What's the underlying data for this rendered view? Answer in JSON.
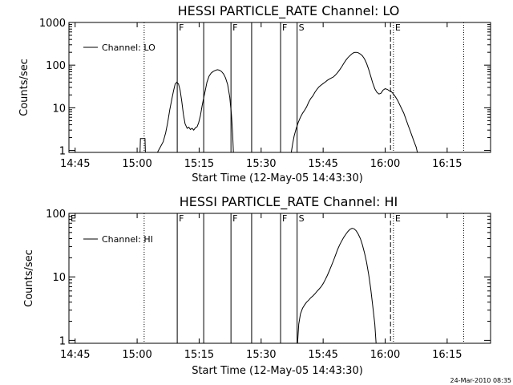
{
  "footer_timestamp": "24-Mar-2010 08:35",
  "chart_data": [
    {
      "type": "line",
      "title": "HESSI PARTICLE_RATE Channel: LO",
      "xlabel": "Start Time (12-May-05 14:43:30)",
      "ylabel": "Counts/sec",
      "y_scale": "log",
      "ylim": [
        0.9,
        1000
      ],
      "xlim_minutes": [
        0,
        102
      ],
      "x_ticks": [
        {
          "min": 1.5,
          "label": "14:45"
        },
        {
          "min": 16.5,
          "label": "15:00"
        },
        {
          "min": 31.5,
          "label": "15:15"
        },
        {
          "min": 46.5,
          "label": "15:30"
        },
        {
          "min": 61.5,
          "label": "15:45"
        },
        {
          "min": 76.5,
          "label": "16:00"
        },
        {
          "min": 91.5,
          "label": "16:15"
        }
      ],
      "y_ticks": [
        {
          "value": 1,
          "label": "1"
        },
        {
          "value": 10,
          "label": "10"
        },
        {
          "value": 100,
          "label": "100"
        },
        {
          "value": 1000,
          "label": "1000"
        }
      ],
      "legend": {
        "position": "top-left",
        "entries": [
          "Channel: LO"
        ]
      },
      "markers": [
        {
          "min": 18.2,
          "style": "dotted",
          "label": ""
        },
        {
          "min": 26.2,
          "style": "solid",
          "label": "F"
        },
        {
          "min": 32.6,
          "style": "solid",
          "label": ""
        },
        {
          "min": 39.2,
          "style": "solid",
          "label": "F"
        },
        {
          "min": 44.2,
          "style": "solid",
          "label": ""
        },
        {
          "min": 51.2,
          "style": "solid",
          "label": "F"
        },
        {
          "min": 55.2,
          "style": "solid",
          "label": "S"
        },
        {
          "min": 77.8,
          "style": "dashed",
          "label": ""
        },
        {
          "min": 78.5,
          "style": "dotted",
          "label": "E"
        },
        {
          "min": 95.5,
          "style": "dotted",
          "label": ""
        }
      ],
      "edge_labels": [],
      "series": [
        {
          "name": "Channel: LO",
          "segments": [
            [
              [
                17.2,
                0.9
              ],
              [
                17.3,
                1.9
              ],
              [
                18.4,
                1.9
              ],
              [
                18.5,
                0.9
              ]
            ],
            [
              [
                21.4,
                0.9
              ],
              [
                22.1,
                1.2
              ],
              [
                22.8,
                1.6
              ],
              [
                23.4,
                2.6
              ],
              [
                23.9,
                4.5
              ],
              [
                24.4,
                9
              ],
              [
                24.9,
                16
              ],
              [
                25.3,
                25
              ],
              [
                25.7,
                36
              ],
              [
                26.1,
                40
              ],
              [
                26.5,
                36
              ],
              [
                26.9,
                26
              ],
              [
                27.3,
                14
              ],
              [
                27.7,
                7
              ],
              [
                28.1,
                4.2
              ],
              [
                28.6,
                3.3
              ],
              [
                29.0,
                3.5
              ],
              [
                29.4,
                3.1
              ],
              [
                29.8,
                3.3
              ],
              [
                30.2,
                3.0
              ],
              [
                30.6,
                3.4
              ],
              [
                31.0,
                3.6
              ],
              [
                31.4,
                4.5
              ],
              [
                31.8,
                6.5
              ],
              [
                32.2,
                11
              ],
              [
                32.6,
                17
              ],
              [
                33.0,
                26
              ],
              [
                33.4,
                40
              ],
              [
                33.9,
                55
              ],
              [
                34.4,
                65
              ],
              [
                34.9,
                71
              ],
              [
                35.4,
                75
              ],
              [
                35.9,
                78
              ],
              [
                36.4,
                76
              ],
              [
                36.9,
                71
              ],
              [
                37.4,
                62
              ],
              [
                37.9,
                50
              ],
              [
                38.4,
                35
              ],
              [
                38.9,
                18
              ],
              [
                39.3,
                7
              ],
              [
                39.6,
                2.5
              ],
              [
                39.8,
                0.9
              ]
            ],
            [
              [
                53.8,
                0.9
              ],
              [
                54.1,
                1.4
              ],
              [
                54.5,
                2.2
              ],
              [
                55.0,
                3.3
              ],
              [
                55.5,
                4.6
              ],
              [
                56.0,
                6.0
              ],
              [
                56.5,
                7.4
              ],
              [
                57.0,
                8.7
              ],
              [
                57.5,
                10.5
              ],
              [
                58.0,
                13.5
              ],
              [
                58.5,
                16.5
              ],
              [
                59.0,
                19
              ],
              [
                59.5,
                23
              ],
              [
                60.0,
                27
              ],
              [
                60.5,
                31
              ],
              [
                61.0,
                34
              ],
              [
                61.5,
                37
              ],
              [
                62.0,
                40
              ],
              [
                62.5,
                44
              ],
              [
                63.0,
                47
              ],
              [
                63.5,
                50
              ],
              [
                64.0,
                53
              ],
              [
                64.5,
                59
              ],
              [
                65.0,
                67
              ],
              [
                65.5,
                78
              ],
              [
                66.0,
                92
              ],
              [
                66.5,
                110
              ],
              [
                67.0,
                130
              ],
              [
                67.5,
                150
              ],
              [
                68.0,
                168
              ],
              [
                68.5,
                185
              ],
              [
                69.0,
                198
              ],
              [
                69.5,
                200
              ],
              [
                70.0,
                195
              ],
              [
                70.5,
                182
              ],
              [
                71.0,
                165
              ],
              [
                71.5,
                140
              ],
              [
                72.0,
                110
              ],
              [
                72.5,
                80
              ],
              [
                73.0,
                55
              ],
              [
                73.5,
                38
              ],
              [
                74.0,
                28
              ],
              [
                74.5,
                23
              ],
              [
                75.0,
                21
              ],
              [
                75.5,
                22
              ],
              [
                76.0,
                26
              ],
              [
                76.5,
                28
              ],
              [
                77.0,
                27
              ],
              [
                77.5,
                25
              ],
              [
                78.0,
                24
              ],
              [
                78.5,
                21
              ],
              [
                79.0,
                18
              ],
              [
                79.5,
                15
              ],
              [
                80.0,
                12
              ],
              [
                80.5,
                9.5
              ],
              [
                81.0,
                7.5
              ],
              [
                81.5,
                5.5
              ],
              [
                82.0,
                4.0
              ],
              [
                82.5,
                3.0
              ],
              [
                83.0,
                2.2
              ],
              [
                83.5,
                1.6
              ],
              [
                84.0,
                1.2
              ],
              [
                84.3,
                0.9
              ]
            ]
          ]
        }
      ]
    },
    {
      "type": "line",
      "title": "HESSI PARTICLE_RATE Channel: HI",
      "xlabel": "Start Time (12-May-05 14:43:30)",
      "ylabel": "Counts/sec",
      "y_scale": "log",
      "ylim": [
        0.9,
        100
      ],
      "xlim_minutes": [
        0,
        102
      ],
      "x_ticks": [
        {
          "min": 1.5,
          "label": "14:45"
        },
        {
          "min": 16.5,
          "label": "15:00"
        },
        {
          "min": 31.5,
          "label": "15:15"
        },
        {
          "min": 46.5,
          "label": "15:30"
        },
        {
          "min": 61.5,
          "label": "15:45"
        },
        {
          "min": 76.5,
          "label": "16:00"
        },
        {
          "min": 91.5,
          "label": "16:15"
        }
      ],
      "y_ticks": [
        {
          "value": 1,
          "label": "1"
        },
        {
          "value": 10,
          "label": "10"
        },
        {
          "value": 100,
          "label": "100"
        }
      ],
      "legend": {
        "position": "top-left",
        "entries": [
          "Channel: HI"
        ]
      },
      "markers": [
        {
          "min": 18.2,
          "style": "dotted",
          "label": ""
        },
        {
          "min": 26.2,
          "style": "solid",
          "label": "F"
        },
        {
          "min": 32.6,
          "style": "solid",
          "label": ""
        },
        {
          "min": 39.2,
          "style": "solid",
          "label": "F"
        },
        {
          "min": 44.2,
          "style": "solid",
          "label": ""
        },
        {
          "min": 51.2,
          "style": "solid",
          "label": "F"
        },
        {
          "min": 55.2,
          "style": "solid",
          "label": "S"
        },
        {
          "min": 77.8,
          "style": "dashed",
          "label": ""
        },
        {
          "min": 78.5,
          "style": "dotted",
          "label": "E"
        },
        {
          "min": 95.5,
          "style": "dotted",
          "label": ""
        }
      ],
      "edge_labels": [
        {
          "min": 0,
          "label": "E"
        }
      ],
      "series": [
        {
          "name": "Channel: HI",
          "segments": [
            [
              [
                55.3,
                0.9
              ],
              [
                55.6,
                1.8
              ],
              [
                56.0,
                2.6
              ],
              [
                56.5,
                3.2
              ],
              [
                57.0,
                3.6
              ],
              [
                57.5,
                4.0
              ],
              [
                58.0,
                4.3
              ],
              [
                58.5,
                4.7
              ],
              [
                59.0,
                5.0
              ],
              [
                59.5,
                5.4
              ],
              [
                60.0,
                5.9
              ],
              [
                60.5,
                6.4
              ],
              [
                61.0,
                7.0
              ],
              [
                61.5,
                7.8
              ],
              [
                62.0,
                9.0
              ],
              [
                62.5,
                10.5
              ],
              [
                63.0,
                12.5
              ],
              [
                63.5,
                15
              ],
              [
                64.0,
                18
              ],
              [
                64.5,
                22
              ],
              [
                65.0,
                27
              ],
              [
                65.5,
                32
              ],
              [
                66.0,
                37
              ],
              [
                66.5,
                42
              ],
              [
                67.0,
                47
              ],
              [
                67.5,
                52
              ],
              [
                68.0,
                56
              ],
              [
                68.5,
                58
              ],
              [
                69.0,
                57
              ],
              [
                69.5,
                53
              ],
              [
                70.0,
                47
              ],
              [
                70.5,
                40
              ],
              [
                71.0,
                32
              ],
              [
                71.5,
                24
              ],
              [
                72.0,
                17
              ],
              [
                72.5,
                11
              ],
              [
                73.0,
                6.5
              ],
              [
                73.5,
                3.5
              ],
              [
                74.0,
                1.8
              ],
              [
                74.3,
                0.9
              ]
            ]
          ]
        }
      ]
    }
  ]
}
